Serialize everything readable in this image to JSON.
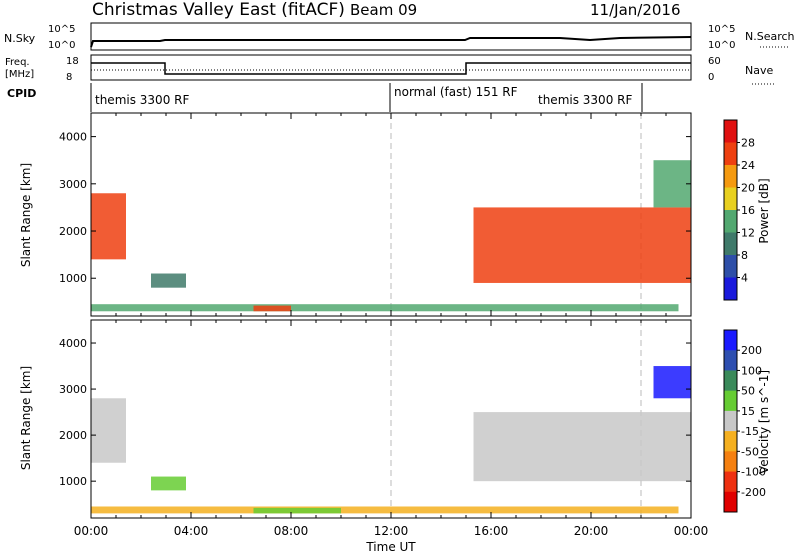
{
  "header": {
    "title": "Christmas Valley East (fitACF)",
    "beam": "Beam 09",
    "date": "11/Jan/2016"
  },
  "strips": {
    "nsky_label": "N.Sky",
    "nsky_ticks": [
      "10^5",
      "10^0"
    ],
    "nsearch_label": "N.Search",
    "nsearch_ticks": [
      "10^5",
      "10^0"
    ],
    "freq_label_1": "Freq.",
    "freq_label_2": "[MHz]",
    "freq_ticks": [
      "18",
      "8"
    ],
    "nave_label": "Nave",
    "nave_ticks": [
      "60",
      "0"
    ],
    "cpid_label": "CPID",
    "cpid_segments": [
      "themis 3300 RF",
      "normal (fast) 151 RF",
      "themis 3300 RF"
    ]
  },
  "chart_data": [
    {
      "type": "heatmap",
      "title": "",
      "xlabel": "",
      "ylabel": "Slant Range [km]",
      "x_range_hours": [
        0,
        24
      ],
      "ylim": [
        200,
        4500
      ],
      "yticks": [
        "1000",
        "2000",
        "3000",
        "4000"
      ],
      "colorbar_label": "Power [dB]",
      "colorbar_ticks": [
        "4",
        "8",
        "12",
        "16",
        "20",
        "24",
        "28"
      ],
      "colorbar_range": [
        0,
        30
      ],
      "colors": [
        "#1a1adc",
        "#2e4fa8",
        "#3f7a6a",
        "#52a870",
        "#e8d020",
        "#f59a10",
        "#ee4010",
        "#e01010"
      ],
      "echoes": [
        {
          "t0": 0.0,
          "t1": 1.4,
          "r0": 1400,
          "r1": 2800,
          "level": 24
        },
        {
          "t0": 2.4,
          "t1": 3.8,
          "r0": 800,
          "r1": 1100,
          "level": 10
        },
        {
          "t0": 0.0,
          "t1": 23.5,
          "r0": 300,
          "r1": 450,
          "level": 12
        },
        {
          "t0": 6.5,
          "t1": 8.0,
          "r0": 300,
          "r1": 420,
          "level": 26
        },
        {
          "t0": 15.3,
          "t1": 24.0,
          "r0": 900,
          "r1": 2500,
          "level": 26
        },
        {
          "t0": 22.5,
          "t1": 24.0,
          "r0": 2500,
          "r1": 3500,
          "level": 14
        }
      ]
    },
    {
      "type": "heatmap",
      "title": "",
      "xlabel": "Time UT",
      "ylabel": "Slant Range [km]",
      "x_range_hours": [
        0,
        24
      ],
      "ylim": [
        200,
        4500
      ],
      "yticks": [
        "1000",
        "2000",
        "3000",
        "4000"
      ],
      "xticks": [
        "00:00",
        "04:00",
        "08:00",
        "12:00",
        "16:00",
        "20:00",
        "00:00"
      ],
      "colorbar_label": "Velocity [m s^-1]",
      "colorbar_ticks": [
        "200",
        "100",
        "50",
        "15",
        "-15",
        "-50",
        "-100",
        "-200"
      ],
      "colorbar_range": [
        -250,
        250
      ],
      "colors": [
        "#1a1aff",
        "#2e4fb0",
        "#3a8a5a",
        "#66cc33",
        "#c8c8c8",
        "#f5b020",
        "#f58010",
        "#ee3010",
        "#e00000"
      ],
      "echoes": [
        {
          "t0": 0.0,
          "t1": 1.4,
          "r0": 1400,
          "r1": 2800,
          "level": 0
        },
        {
          "t0": 2.4,
          "t1": 3.8,
          "r0": 800,
          "r1": 1100,
          "level": 40
        },
        {
          "t0": 0.0,
          "t1": 23.5,
          "r0": 300,
          "r1": 450,
          "level": -40
        },
        {
          "t0": 6.5,
          "t1": 10.0,
          "r0": 300,
          "r1": 420,
          "level": 30
        },
        {
          "t0": 15.3,
          "t1": 24.0,
          "r0": 1000,
          "r1": 2500,
          "level": 0
        },
        {
          "t0": 22.5,
          "t1": 24.0,
          "r0": 2800,
          "r1": 3500,
          "level": 220
        }
      ]
    }
  ]
}
